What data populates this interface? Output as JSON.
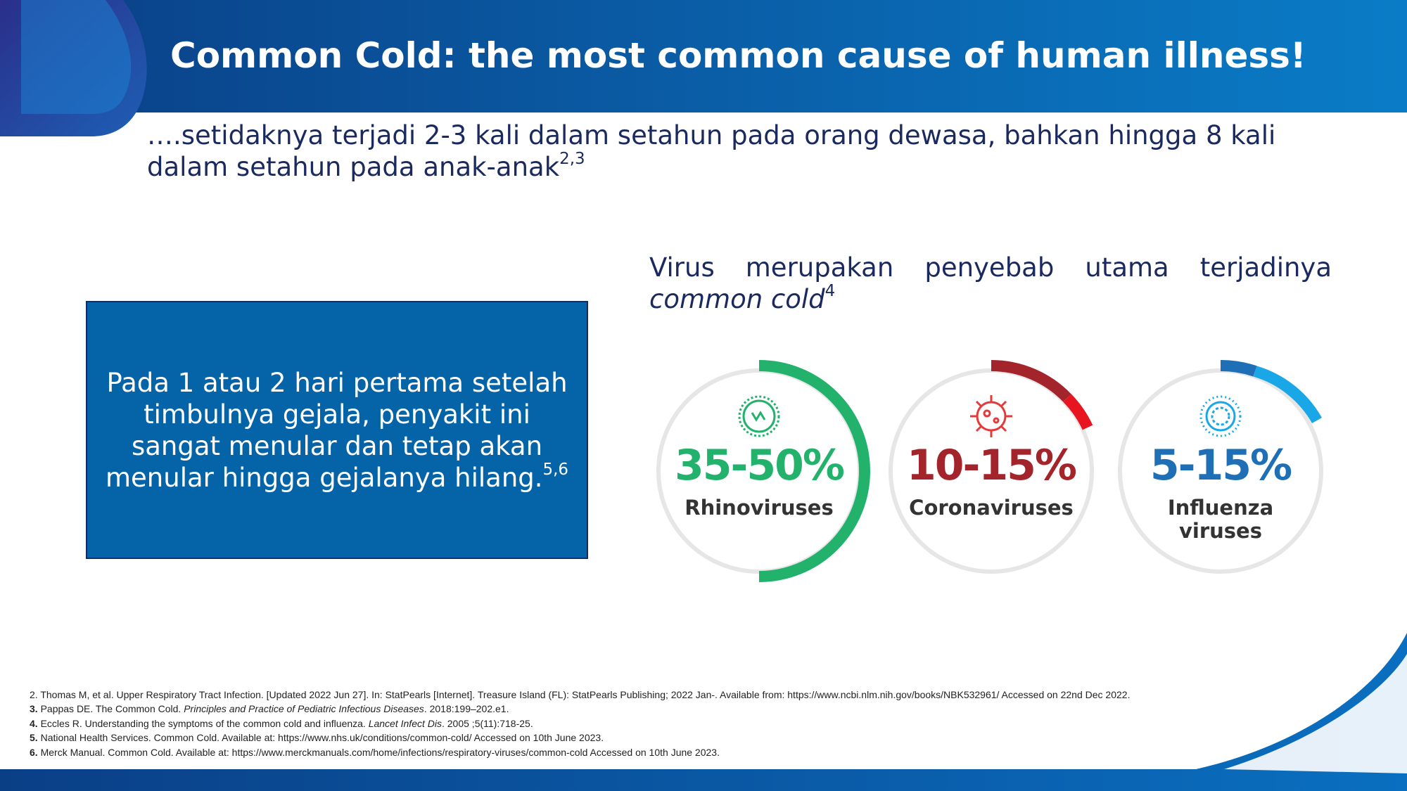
{
  "header": {
    "title": "Common Cold: the most common cause of human illness!"
  },
  "subtitle": {
    "text": "….setidaknya terjadi 2-3 kali dalam setahun pada orang dewasa, bahkan hingga 8 kali dalam setahun pada anak-anak",
    "sup": "2,3"
  },
  "box": {
    "text": "Pada 1 atau 2 hari pertama setelah timbulnya gejala, penyakit ini sangat menular dan tetap akan menular hingga gejalanya hilang.",
    "sup": "5,6"
  },
  "virus_heading": {
    "text": "Virus merupakan penyebab utama terjadinya ",
    "italic": "common cold",
    "sup": "4"
  },
  "viruses": [
    {
      "percent": "35-50%",
      "name": "Rhinoviruses"
    },
    {
      "percent": "10-15%",
      "name": "Coronaviruses"
    },
    {
      "percent": "5-15%",
      "name": [
        "Influenza",
        "viruses"
      ]
    }
  ],
  "references": [
    {
      "number": "2.",
      "text": "Thomas M, et al. Upper Respiratory Tract Infection. [Updated 2022 Jun 27]. In: StatPearls [Internet]. Treasure Island (FL): StatPearls Publishing; 2022 Jan-. Available from: https://www.ncbi.nlm.nih.gov/books/NBK532961/ Accessed on 22nd Dec 2022."
    },
    {
      "number": "3.",
      "text": "Pappas DE. The Common Cold. ",
      "italic": "Principles and Practice of Pediatric Infectious Diseases",
      "after": ". 2018:199–202.e1."
    },
    {
      "number": "4.",
      "text": "Eccles R. Understanding the symptoms of the common cold and influenza. ",
      "italic": "Lancet Infect Dis",
      "after": ". 2005 ;5(11):718-25."
    },
    {
      "number": "5.",
      "text": "National Health Services. Common Cold. Available at: https://www.nhs.uk/conditions/common-cold/ Accessed on 10th June 2023."
    },
    {
      "number": "6.",
      "text": "Merck Manual. Common Cold. Available at: https://www.merckmanuals.com/home/infections/respiratory-viruses/common-cold Accessed on 10th June 2023."
    }
  ]
}
